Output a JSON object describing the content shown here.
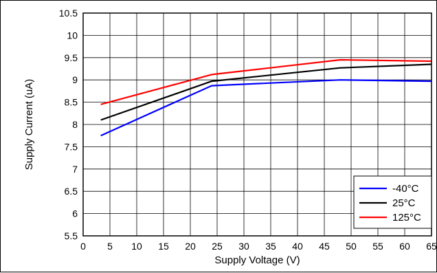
{
  "chart_data": {
    "type": "line",
    "title": "",
    "xlabel": "Supply Voltage (V)",
    "ylabel": "Supply Current (uA)",
    "xlim": [
      0,
      65
    ],
    "ylim": [
      5.5,
      10.5
    ],
    "x_ticks": [
      "0",
      "5",
      "10",
      "15",
      "20",
      "25",
      "30",
      "35",
      "40",
      "45",
      "50",
      "55",
      "60",
      "65"
    ],
    "y_ticks": [
      "5.5",
      "6",
      "6.5",
      "7",
      "7.5",
      "8",
      "8.5",
      "9",
      "9.5",
      "10",
      "10.5"
    ],
    "grid": true,
    "legend_position": "bottom-right",
    "series": [
      {
        "name": "-40°C",
        "color": "#0000ff",
        "points": [
          [
            3.3,
            7.75
          ],
          [
            24,
            8.87
          ],
          [
            48,
            9.0
          ],
          [
            65,
            8.97
          ]
        ]
      },
      {
        "name": "25°C",
        "color": "#000000",
        "points": [
          [
            3.3,
            8.1
          ],
          [
            24,
            8.97
          ],
          [
            48,
            9.27
          ],
          [
            65,
            9.35
          ]
        ]
      },
      {
        "name": "125°C",
        "color": "#ff0000",
        "points": [
          [
            3.3,
            8.45
          ],
          [
            24,
            9.12
          ],
          [
            48,
            9.45
          ],
          [
            65,
            9.42
          ]
        ]
      }
    ]
  }
}
